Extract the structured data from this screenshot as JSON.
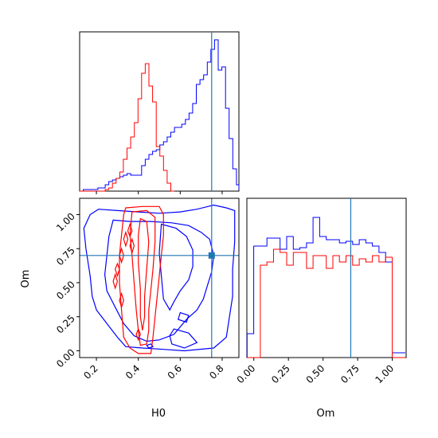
{
  "chart_data": {
    "type": "corner",
    "parameters": [
      "H0",
      "Om"
    ],
    "truth": {
      "H0": 0.75,
      "Om": 0.7
    },
    "colors": {
      "series_a": "#0000ff",
      "series_b": "#ff0000",
      "truth": "#1f77b4"
    },
    "panels": {
      "h0_hist": {
        "type": "histogram",
        "xlim": [
          0.12,
          0.88
        ],
        "bin_width": 0.0174,
        "bin_start": 0.12,
        "series": [
          {
            "color": "#0000ff",
            "counts": [
              0.0,
              0.01,
              0.01,
              0.01,
              0.01,
              0.02,
              0.02,
              0.04,
              0.06,
              0.07,
              0.08,
              0.09,
              0.1,
              0.11,
              0.1,
              0.1,
              0.1,
              0.16,
              0.2,
              0.23,
              0.25,
              0.26,
              0.29,
              0.31,
              0.34,
              0.37,
              0.4,
              0.4,
              0.42,
              0.45,
              0.49,
              0.55,
              0.67,
              0.7,
              0.73,
              0.81,
              0.89,
              0.95,
              0.76,
              0.78,
              0.52,
              0.33,
              0.14,
              0.04,
              0.01
            ]
          },
          {
            "color": "#ff0000",
            "counts": [
              0.0,
              0.0,
              0.0,
              0.0,
              0.0,
              0.0,
              0.0,
              0.01,
              0.02,
              0.05,
              0.08,
              0.12,
              0.2,
              0.27,
              0.34,
              0.43,
              0.58,
              0.74,
              0.8,
              0.66,
              0.56,
              0.28,
              0.22,
              0.13,
              0.05,
              0.0
            ]
          }
        ]
      },
      "om_hist": {
        "type": "histogram",
        "xlim": [
          -0.05,
          1.1
        ],
        "bin_width": 0.0476,
        "bin_start": -0.048,
        "series": [
          {
            "color": "#0000ff",
            "counts": [
              0.15,
              0.7,
              0.7,
              0.75,
              0.75,
              0.68,
              0.76,
              0.68,
              0.69,
              0.72,
              0.88,
              0.76,
              0.74,
              0.74,
              0.72,
              0.73,
              0.71,
              0.74,
              0.72,
              0.7,
              0.66,
              0.6,
              0.03,
              0.03
            ]
          },
          {
            "color": "#ff0000",
            "counts": [
              0.0,
              0.0,
              0.58,
              0.6,
              0.68,
              0.66,
              0.58,
              0.66,
              0.66,
              0.56,
              0.64,
              0.64,
              0.56,
              0.64,
              0.6,
              0.64,
              0.58,
              0.62,
              0.6,
              0.64,
              0.6,
              0.63,
              0.0,
              0.0
            ]
          }
        ]
      },
      "joint": {
        "type": "contour",
        "xlim": [
          0.12,
          0.88
        ],
        "ylim": [
          -0.05,
          1.12
        ],
        "series": [
          {
            "color": "#0000ff",
            "contours": [
              [
                [
                  0.21,
                  1.04
                ],
                [
                  0.3,
                  1.03
                ],
                [
                  0.4,
                  1.02
                ],
                [
                  0.5,
                  1.01
                ],
                [
                  0.6,
                  1.02
                ],
                [
                  0.68,
                  1.04
                ],
                [
                  0.76,
                  1.07
                ],
                [
                  0.82,
                  1.05
                ],
                [
                  0.86,
                  1.03
                ],
                [
                  0.86,
                  0.8
                ],
                [
                  0.85,
                  0.6
                ],
                [
                  0.85,
                  0.4
                ],
                [
                  0.82,
                  0.1
                ],
                [
                  0.76,
                  0.02
                ],
                [
                  0.62,
                  0.0
                ],
                [
                  0.52,
                  0.01
                ],
                [
                  0.42,
                  0.02
                ],
                [
                  0.34,
                  0.03
                ],
                [
                  0.3,
                  0.1
                ],
                [
                  0.25,
                  0.2
                ],
                [
                  0.2,
                  0.3
                ],
                [
                  0.18,
                  0.4
                ],
                [
                  0.17,
                  0.55
                ],
                [
                  0.15,
                  0.75
                ],
                [
                  0.14,
                  0.9
                ],
                [
                  0.17,
                  1.0
                ],
                [
                  0.21,
                  1.04
                ]
              ],
              [
                [
                  0.28,
                  0.96
                ],
                [
                  0.36,
                  0.95
                ],
                [
                  0.46,
                  0.95
                ],
                [
                  0.56,
                  0.94
                ],
                [
                  0.64,
                  0.92
                ],
                [
                  0.7,
                  0.87
                ],
                [
                  0.74,
                  0.82
                ],
                [
                  0.76,
                  0.7
                ],
                [
                  0.75,
                  0.58
                ],
                [
                  0.73,
                  0.48
                ],
                [
                  0.71,
                  0.38
                ],
                [
                  0.68,
                  0.3
                ],
                [
                  0.63,
                  0.23
                ],
                [
                  0.57,
                  0.12
                ],
                [
                  0.5,
                  0.08
                ],
                [
                  0.44,
                  0.07
                ],
                [
                  0.38,
                  0.11
                ],
                [
                  0.33,
                  0.2
                ],
                [
                  0.29,
                  0.32
                ],
                [
                  0.25,
                  0.44
                ],
                [
                  0.24,
                  0.56
                ],
                [
                  0.25,
                  0.7
                ],
                [
                  0.26,
                  0.84
                ],
                [
                  0.28,
                  0.96
                ]
              ],
              [
                [
                  0.51,
                  0.93
                ],
                [
                  0.58,
                  0.9
                ],
                [
                  0.63,
                  0.84
                ],
                [
                  0.66,
                  0.74
                ],
                [
                  0.66,
                  0.62
                ],
                [
                  0.64,
                  0.52
                ],
                [
                  0.6,
                  0.44
                ],
                [
                  0.57,
                  0.36
                ],
                [
                  0.55,
                  0.3
                ],
                [
                  0.52,
                  0.38
                ],
                [
                  0.51,
                  0.55
                ],
                [
                  0.5,
                  0.72
                ],
                [
                  0.51,
                  0.93
                ]
              ],
              [
                [
                  0.57,
                  0.16
                ],
                [
                  0.64,
                  0.13
                ],
                [
                  0.68,
                  0.06
                ],
                [
                  0.62,
                  0.02
                ],
                [
                  0.56,
                  0.05
                ],
                [
                  0.55,
                  0.11
                ],
                [
                  0.57,
                  0.16
                ]
              ],
              [
                [
                  0.6,
                  0.28
                ],
                [
                  0.64,
                  0.26
                ],
                [
                  0.63,
                  0.21
                ],
                [
                  0.59,
                  0.23
                ],
                [
                  0.6,
                  0.28
                ]
              ],
              [
                [
                  0.46,
                  0.05
                ],
                [
                  0.47,
                  0.03
                ],
                [
                  0.45,
                  0.02
                ],
                [
                  0.44,
                  0.04
                ],
                [
                  0.46,
                  0.05
                ]
              ]
            ]
          },
          {
            "color": "#ff0000",
            "contours": [
              [
                [
                  0.34,
                  1.05
                ],
                [
                  0.42,
                  1.06
                ],
                [
                  0.5,
                  1.06
                ],
                [
                  0.52,
                  1.0
                ],
                [
                  0.52,
                  0.85
                ],
                [
                  0.51,
                  0.7
                ],
                [
                  0.5,
                  0.55
                ],
                [
                  0.49,
                  0.4
                ],
                [
                  0.48,
                  0.25
                ],
                [
                  0.47,
                  0.1
                ],
                [
                  0.46,
                  -0.02
                ],
                [
                  0.4,
                  -0.02
                ],
                [
                  0.36,
                  0.02
                ],
                [
                  0.33,
                  0.1
                ],
                [
                  0.32,
                  0.3
                ],
                [
                  0.31,
                  0.5
                ],
                [
                  0.31,
                  0.7
                ],
                [
                  0.32,
                  0.85
                ],
                [
                  0.33,
                  1.0
                ],
                [
                  0.34,
                  1.05
                ]
              ],
              [
                [
                  0.37,
                  1.02
                ],
                [
                  0.44,
                  1.03
                ],
                [
                  0.48,
                  0.98
                ],
                [
                  0.48,
                  0.8
                ],
                [
                  0.47,
                  0.6
                ],
                [
                  0.46,
                  0.45
                ],
                [
                  0.45,
                  0.3
                ],
                [
                  0.45,
                  0.15
                ],
                [
                  0.44,
                  0.05
                ],
                [
                  0.41,
                  0.04
                ],
                [
                  0.4,
                  0.15
                ],
                [
                  0.39,
                  0.3
                ],
                [
                  0.38,
                  0.5
                ],
                [
                  0.37,
                  0.7
                ],
                [
                  0.36,
                  0.85
                ],
                [
                  0.37,
                  1.02
                ]
              ],
              [
                [
                  0.41,
                  0.97
                ],
                [
                  0.44,
                  0.95
                ],
                [
                  0.45,
                  0.8
                ],
                [
                  0.44,
                  0.6
                ],
                [
                  0.43,
                  0.4
                ],
                [
                  0.43,
                  0.25
                ],
                [
                  0.42,
                  0.15
                ],
                [
                  0.41,
                  0.25
                ],
                [
                  0.41,
                  0.45
                ],
                [
                  0.4,
                  0.65
                ],
                [
                  0.4,
                  0.85
                ],
                [
                  0.41,
                  0.97
                ]
              ],
              [
                [
                  0.3,
                  0.64
                ],
                [
                  0.31,
                  0.6
                ],
                [
                  0.3,
                  0.55
                ],
                [
                  0.29,
                  0.6
                ],
                [
                  0.3,
                  0.64
                ]
              ],
              [
                [
                  0.29,
                  0.56
                ],
                [
                  0.3,
                  0.51
                ],
                [
                  0.29,
                  0.46
                ],
                [
                  0.28,
                  0.51
                ],
                [
                  0.29,
                  0.56
                ]
              ],
              [
                [
                  0.32,
                  0.75
                ],
                [
                  0.33,
                  0.7
                ],
                [
                  0.32,
                  0.65
                ],
                [
                  0.31,
                  0.7
                ],
                [
                  0.32,
                  0.75
                ]
              ],
              [
                [
                  0.32,
                  0.42
                ],
                [
                  0.33,
                  0.37
                ],
                [
                  0.32,
                  0.32
                ],
                [
                  0.31,
                  0.37
                ],
                [
                  0.32,
                  0.42
                ]
              ],
              [
                [
                  0.34,
                  0.87
                ],
                [
                  0.35,
                  0.82
                ],
                [
                  0.34,
                  0.77
                ],
                [
                  0.33,
                  0.82
                ],
                [
                  0.34,
                  0.87
                ]
              ],
              [
                [
                  0.37,
                  0.82
                ],
                [
                  0.38,
                  0.77
                ],
                [
                  0.37,
                  0.72
                ],
                [
                  0.36,
                  0.77
                ],
                [
                  0.37,
                  0.82
                ]
              ],
              [
                [
                  0.36,
                  0.93
                ],
                [
                  0.37,
                  0.88
                ],
                [
                  0.36,
                  0.84
                ],
                [
                  0.35,
                  0.88
                ],
                [
                  0.36,
                  0.93
                ]
              ],
              [
                [
                  0.4,
                  0.16
                ],
                [
                  0.41,
                  0.12
                ],
                [
                  0.4,
                  0.08
                ],
                [
                  0.39,
                  0.12
                ],
                [
                  0.4,
                  0.16
                ]
              ]
            ]
          }
        ]
      }
    },
    "axes": {
      "h0_ticks": [
        "0.2",
        "0.4",
        "0.6",
        "0.8"
      ],
      "om_ticks": [
        "0.00",
        "0.25",
        "0.50",
        "0.75",
        "1.00"
      ],
      "xlabel_joint": "H0",
      "ylabel_joint": "Om",
      "xlabel_om": "Om"
    }
  }
}
